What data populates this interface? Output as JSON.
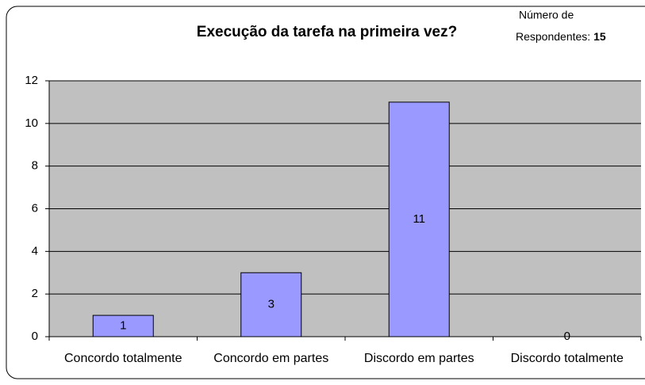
{
  "chart_data": {
    "type": "bar",
    "title": "Execução da tarefa na primeira vez?",
    "annotation": {
      "line1": "Número de",
      "line2": "Respondentes:",
      "respondents": 15
    },
    "categories": [
      "Concordo totalmente",
      "Concordo em partes",
      "Discordo em partes",
      "Discordo totalmente"
    ],
    "values": [
      1,
      3,
      11,
      0
    ],
    "color": "#9999ff",
    "ylim": [
      0,
      12
    ],
    "yticks": [
      0,
      2,
      4,
      6,
      8,
      10,
      12
    ],
    "grid": true
  }
}
